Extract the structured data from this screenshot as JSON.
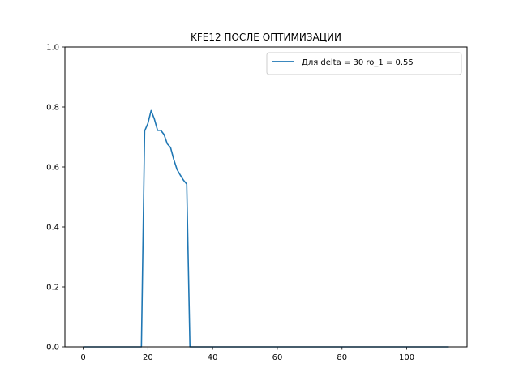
{
  "chart_data": {
    "type": "line",
    "title": "KFE12 ПОСЛЕ ОПТИМИЗАЦИИ",
    "xlabel": "",
    "ylabel": "",
    "xlim": [
      -5.65,
      118.65
    ],
    "ylim": [
      0.0,
      1.0
    ],
    "xticks": [
      0,
      20,
      40,
      60,
      80,
      100
    ],
    "yticks": [
      0.0,
      0.2,
      0.4,
      0.6,
      0.8,
      1.0
    ],
    "xtick_labels": [
      "0",
      "20",
      "40",
      "60",
      "80",
      "100"
    ],
    "ytick_labels": [
      "0.0",
      "0.2",
      "0.4",
      "0.6",
      "0.8",
      "1.0"
    ],
    "grid": false,
    "legend_position": "upper right",
    "series": [
      {
        "name": "Для delta = 30 ro_1 = 0.55",
        "color": "#1f77b4",
        "x": [
          0,
          18,
          19,
          20,
          21,
          22,
          23,
          24,
          25,
          26,
          27,
          28,
          29,
          30,
          31,
          32,
          33,
          113
        ],
        "y": [
          0.0,
          0.0,
          0.72,
          0.745,
          0.788,
          0.76,
          0.722,
          0.722,
          0.708,
          0.677,
          0.665,
          0.625,
          0.592,
          0.573,
          0.556,
          0.543,
          0.0,
          0.0
        ]
      }
    ]
  }
}
